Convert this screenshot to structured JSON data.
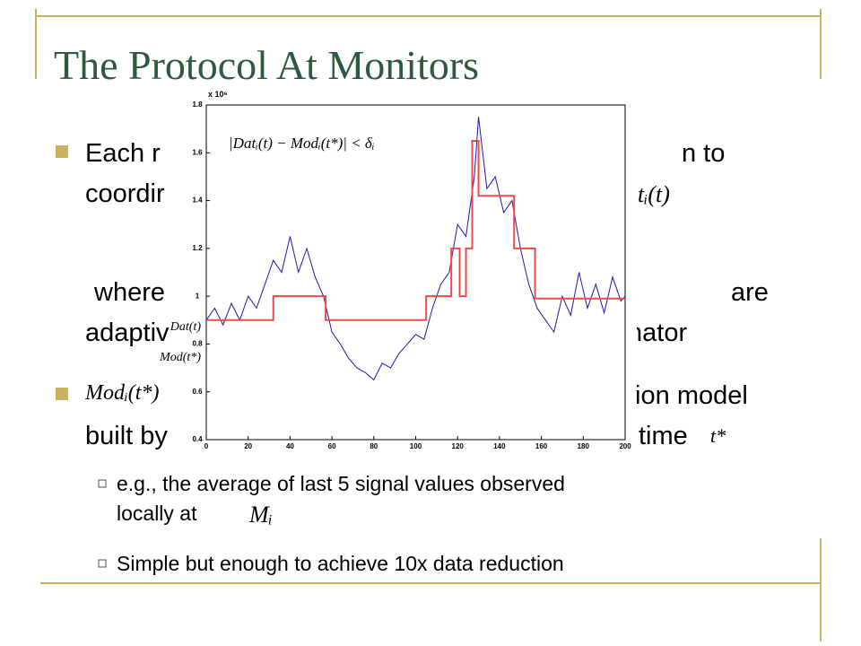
{
  "slide": {
    "title": "The Protocol At Monitors",
    "lines": [
      "Each r",
      "n to",
      "coordir",
      "atᵢ(t)",
      "where",
      "are",
      "adaptiv",
      "nator",
      "Modᵢ(t*)",
      "tion model",
      "built by",
      "time",
      "t*"
    ],
    "sub_bullets": [
      "e.g., the average of last 5 signal values observed",
      "locally at",
      "Mᵢ",
      "Simple but enough to achieve 10x data reduction"
    ]
  },
  "chart_data": {
    "type": "line",
    "annotation": "|Datᵢ(t) − Modᵢ(t*)| < δᵢ",
    "exponent_label": "x 10⁶",
    "xlim": [
      0,
      200
    ],
    "ylim": [
      0.4,
      1.8
    ],
    "xticks": [
      0,
      20,
      40,
      60,
      80,
      100,
      120,
      140,
      160,
      180,
      200
    ],
    "yticks": [
      0.4,
      0.6,
      0.8,
      1,
      1.2,
      1.4,
      1.6,
      1.8
    ],
    "series": [
      {
        "name": "Dat(t)",
        "color": "#1c1ca8",
        "x": [
          0,
          4,
          8,
          12,
          16,
          20,
          24,
          28,
          32,
          36,
          40,
          44,
          48,
          52,
          56,
          60,
          64,
          68,
          72,
          76,
          80,
          84,
          88,
          92,
          96,
          100,
          104,
          108,
          112,
          116,
          120,
          124,
          128,
          130,
          134,
          138,
          142,
          146,
          150,
          154,
          158,
          162,
          166,
          170,
          174,
          178,
          182,
          186,
          190,
          194,
          198,
          200
        ],
        "values": [
          0.9,
          0.95,
          0.88,
          0.97,
          0.9,
          1.0,
          0.95,
          1.05,
          1.15,
          1.1,
          1.25,
          1.1,
          1.2,
          1.08,
          1.0,
          0.85,
          0.8,
          0.74,
          0.7,
          0.68,
          0.65,
          0.72,
          0.7,
          0.76,
          0.8,
          0.84,
          0.82,
          0.95,
          1.05,
          1.1,
          1.3,
          1.25,
          1.5,
          1.75,
          1.45,
          1.5,
          1.35,
          1.4,
          1.2,
          1.05,
          0.95,
          0.9,
          0.85,
          1.0,
          0.92,
          1.1,
          0.95,
          1.05,
          0.93,
          1.08,
          0.98,
          1.0
        ]
      },
      {
        "name": "Mod(t*)",
        "color": "#f04848",
        "x": [
          0,
          32,
          32,
          57,
          57,
          105,
          105,
          117,
          117,
          121,
          121,
          124,
          124,
          127,
          127,
          130,
          130,
          147,
          147,
          157,
          157,
          200
        ],
        "values": [
          0.9,
          0.9,
          1.0,
          1.0,
          0.9,
          0.9,
          1.0,
          1.0,
          1.2,
          1.2,
          1.0,
          1.0,
          1.2,
          1.2,
          1.65,
          1.65,
          1.42,
          1.42,
          1.2,
          1.2,
          0.99,
          0.99
        ]
      }
    ]
  }
}
